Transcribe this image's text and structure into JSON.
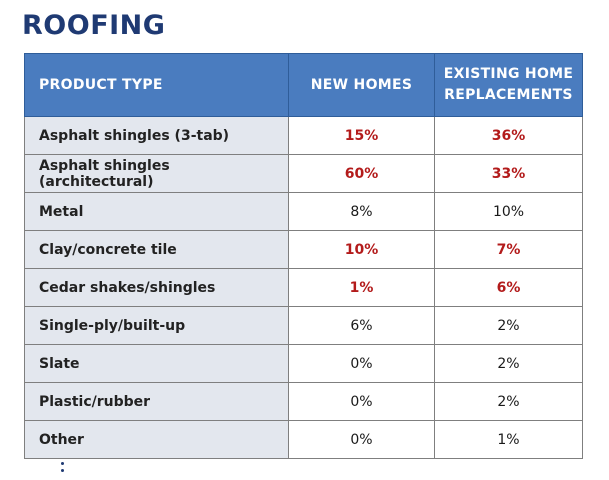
{
  "title": "ROOFING",
  "table": {
    "headers": {
      "product_type": "PRODUCT TYPE",
      "new_homes": "NEW HOMES",
      "existing_line1": "EXISTING HOME",
      "existing_line2": "REPLACEMENTS"
    },
    "highlight_color": "#b31b1b",
    "header_color": "#4a7cbf",
    "rows": [
      {
        "product": "Asphalt shingles (3-tab)",
        "new_homes": "15%",
        "existing": "36%",
        "highlight": true
      },
      {
        "product": "Asphalt shingles (architectural)",
        "new_homes": "60%",
        "existing": "33%",
        "highlight": true
      },
      {
        "product": "Metal",
        "new_homes": "8%",
        "existing": "10%",
        "highlight": false
      },
      {
        "product": "Clay/concrete tile",
        "new_homes": "10%",
        "existing": "7%",
        "highlight": true
      },
      {
        "product": "Cedar shakes/shingles",
        "new_homes": "1%",
        "existing": "6%",
        "highlight": true
      },
      {
        "product": "Single-ply/built-up",
        "new_homes": "6%",
        "existing": "2%",
        "highlight": false
      },
      {
        "product": "Slate",
        "new_homes": "0%",
        "existing": "2%",
        "highlight": false
      },
      {
        "product": "Plastic/rubber",
        "new_homes": "0%",
        "existing": "2%",
        "highlight": false
      },
      {
        "product": "Other",
        "new_homes": "0%",
        "existing": "1%",
        "highlight": false
      }
    ]
  }
}
